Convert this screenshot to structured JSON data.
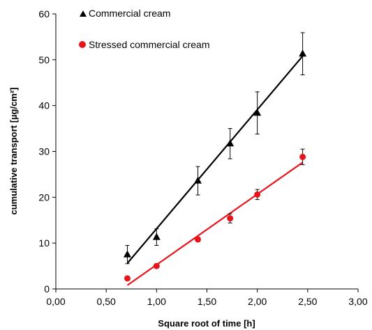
{
  "chart_data": {
    "type": "scatter",
    "xlabel": "Square root of time [h]",
    "ylabel": "cumulative transport [µg/cm²]",
    "xlim": [
      0,
      3
    ],
    "ylim": [
      0,
      60
    ],
    "x_ticks": [
      "0,00",
      "0,50",
      "1,00",
      "1,50",
      "2,00",
      "2,50",
      "3,00"
    ],
    "y_ticks": [
      "0",
      "10",
      "20",
      "30",
      "40",
      "50",
      "60"
    ],
    "x_tick_values": [
      0,
      0.5,
      1.0,
      1.5,
      2.0,
      2.5,
      3.0
    ],
    "y_tick_values": [
      0,
      10,
      20,
      30,
      40,
      50,
      60
    ],
    "grid": false,
    "legend_position": "top-left",
    "series": [
      {
        "name": "Commercial cream",
        "marker": "triangle",
        "color": "#000000",
        "x": [
          0.71,
          1.0,
          1.41,
          1.73,
          2.0,
          2.45
        ],
        "y": [
          7.5,
          11.3,
          23.6,
          31.7,
          38.4,
          51.3
        ],
        "error": [
          2.0,
          1.8,
          3.1,
          3.3,
          4.6,
          4.6
        ],
        "trendline": {
          "x": [
            0.71,
            2.45
          ],
          "y": [
            5.6,
            50.8
          ]
        }
      },
      {
        "name": "Stressed commercial cream",
        "marker": "circle",
        "color": "#e8141b",
        "x": [
          0.71,
          1.0,
          1.41,
          1.73,
          2.0,
          2.45
        ],
        "y": [
          2.3,
          5.0,
          10.8,
          15.4,
          20.6,
          28.8
        ],
        "error": [
          0.0,
          0.0,
          0.5,
          1.0,
          1.1,
          1.7
        ],
        "trendline": {
          "x": [
            0.71,
            2.45
          ],
          "y": [
            0.8,
            27.6
          ]
        }
      }
    ]
  }
}
